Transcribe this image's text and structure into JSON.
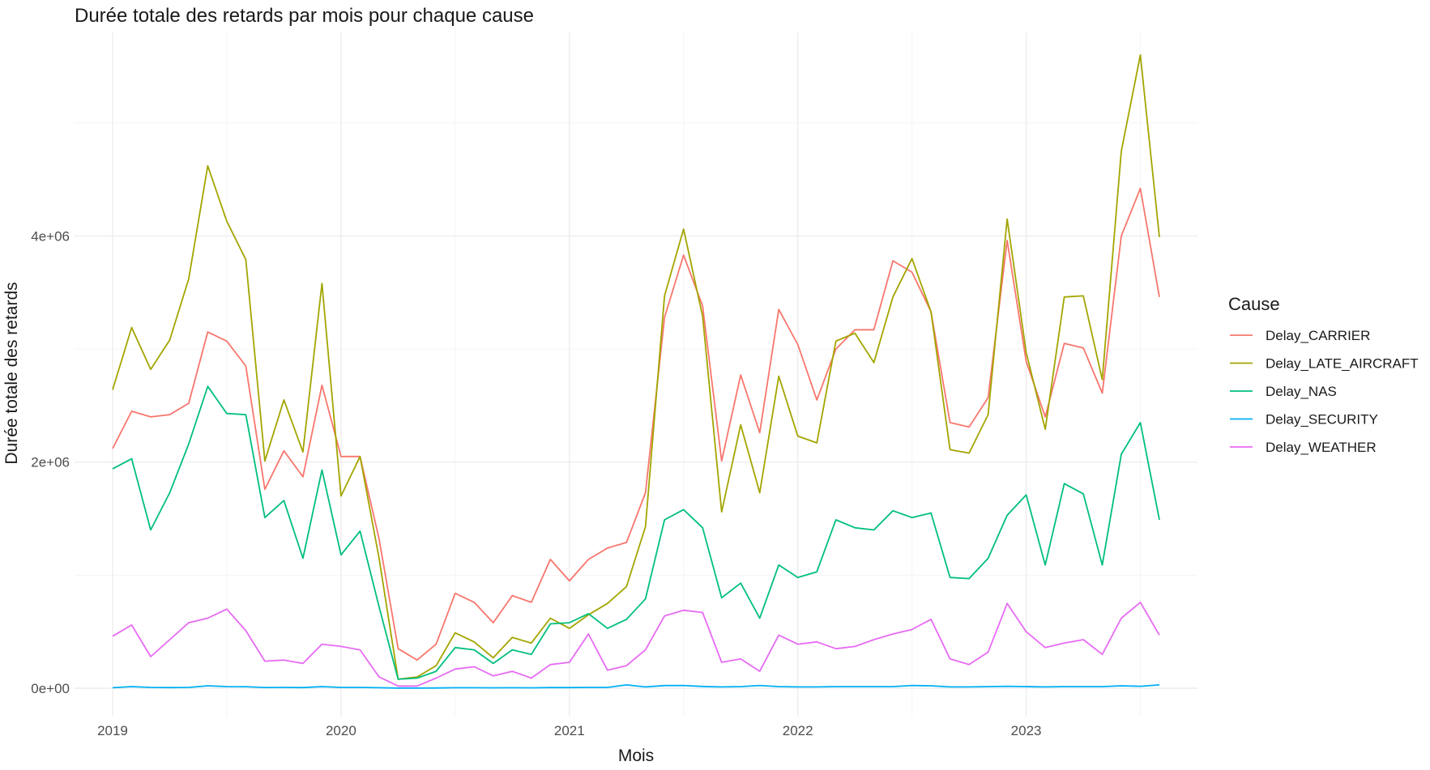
{
  "chart_data": {
    "type": "line",
    "title": "Durée totale des retards par mois pour chaque cause",
    "xlabel": "Mois",
    "ylabel": "Durée totale des retards",
    "x_start": "2019-01",
    "x_end": "2023-08",
    "xlim": [
      "2018-11",
      "2023-10"
    ],
    "x_ticks": [
      "2019",
      "2020",
      "2021",
      "2022",
      "2023"
    ],
    "ylim": [
      -250000,
      5800000
    ],
    "y_ticks": [
      0,
      2000000,
      4000000
    ],
    "y_tick_labels": [
      "0e+00",
      "2e+06",
      "4e+06"
    ],
    "y_minor_ticks": [
      1000000,
      3000000,
      5000000
    ],
    "grid": true,
    "legend": {
      "title": "Cause",
      "position": "right"
    },
    "series": [
      {
        "name": "Delay_CARRIER",
        "color": "#F8766D",
        "values": [
          2120000,
          2450000,
          2400000,
          2420000,
          2520000,
          3150000,
          3070000,
          2850000,
          1760000,
          2100000,
          1870000,
          2680000,
          2050000,
          2050000,
          1320000,
          350000,
          250000,
          390000,
          840000,
          760000,
          580000,
          820000,
          760000,
          1140000,
          950000,
          1140000,
          1240000,
          1290000,
          1730000,
          3280000,
          3830000,
          3380000,
          2010000,
          2770000,
          2260000,
          3350000,
          3040000,
          2550000,
          3000000,
          3170000,
          3170000,
          3780000,
          3680000,
          3330000,
          2350000,
          2310000,
          2570000,
          3960000,
          2890000,
          2400000,
          3050000,
          3010000,
          2610000,
          4000000,
          4420000,
          3460000
        ]
      },
      {
        "name": "Delay_LATE_AIRCRAFT",
        "color": "#A3A500",
        "values": [
          2640000,
          3190000,
          2820000,
          3080000,
          3620000,
          4620000,
          4130000,
          3790000,
          2010000,
          2550000,
          2090000,
          3580000,
          1700000,
          2050000,
          1150000,
          80000,
          100000,
          200000,
          490000,
          410000,
          270000,
          450000,
          400000,
          620000,
          530000,
          650000,
          750000,
          900000,
          1430000,
          3470000,
          4060000,
          3290000,
          1560000,
          2330000,
          1730000,
          2760000,
          2230000,
          2170000,
          3070000,
          3140000,
          2880000,
          3460000,
          3800000,
          3330000,
          2110000,
          2080000,
          2420000,
          4150000,
          2970000,
          2290000,
          3460000,
          3470000,
          2730000,
          4750000,
          5600000,
          3990000
        ]
      },
      {
        "name": "Delay_NAS",
        "color": "#00BF7D",
        "values": [
          1940000,
          2030000,
          1400000,
          1730000,
          2160000,
          2670000,
          2430000,
          2420000,
          1510000,
          1660000,
          1150000,
          1930000,
          1180000,
          1390000,
          720000,
          80000,
          90000,
          150000,
          360000,
          340000,
          220000,
          340000,
          300000,
          570000,
          580000,
          660000,
          530000,
          610000,
          790000,
          1490000,
          1580000,
          1420000,
          800000,
          930000,
          620000,
          1090000,
          980000,
          1030000,
          1490000,
          1420000,
          1400000,
          1570000,
          1510000,
          1550000,
          980000,
          970000,
          1150000,
          1530000,
          1710000,
          1090000,
          1810000,
          1720000,
          1090000,
          2070000,
          2350000,
          1490000
        ]
      },
      {
        "name": "Delay_SECURITY",
        "color": "#00B0F6",
        "values": [
          5000,
          15000,
          8000,
          6000,
          8000,
          22000,
          15000,
          14000,
          7000,
          8000,
          6000,
          15000,
          8000,
          8000,
          5000,
          2000,
          2000,
          3000,
          5000,
          5000,
          4000,
          5000,
          4000,
          6000,
          6000,
          8000,
          8000,
          30000,
          12000,
          24000,
          25000,
          16000,
          12000,
          15000,
          25000,
          15000,
          12000,
          12000,
          15000,
          15000,
          15000,
          15000,
          25000,
          22000,
          12000,
          12000,
          15000,
          18000,
          15000,
          12000,
          15000,
          15000,
          15000,
          22000,
          18000,
          30000
        ]
      },
      {
        "name": "Delay_WEATHER",
        "color": "#E76BF3",
        "values": [
          460000,
          560000,
          280000,
          430000,
          580000,
          620000,
          700000,
          510000,
          240000,
          250000,
          220000,
          390000,
          370000,
          340000,
          100000,
          20000,
          20000,
          90000,
          170000,
          190000,
          110000,
          150000,
          90000,
          210000,
          230000,
          480000,
          160000,
          200000,
          340000,
          640000,
          690000,
          670000,
          230000,
          260000,
          150000,
          470000,
          390000,
          410000,
          350000,
          370000,
          430000,
          480000,
          520000,
          610000,
          260000,
          210000,
          320000,
          750000,
          500000,
          360000,
          400000,
          430000,
          300000,
          620000,
          760000,
          470000
        ]
      }
    ]
  }
}
